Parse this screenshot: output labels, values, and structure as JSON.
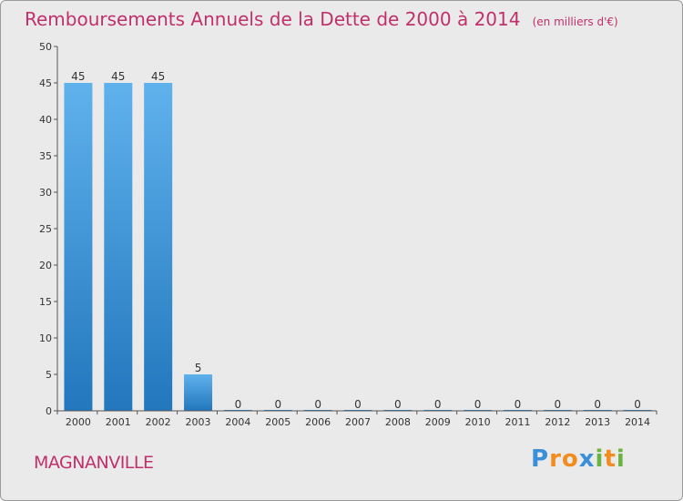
{
  "chart_data": {
    "type": "bar",
    "title": "Remboursements Annuels de la Dette de 2000 à 2014",
    "subtitle": "(en milliers d'€)",
    "categories": [
      "2000",
      "2001",
      "2002",
      "2003",
      "2004",
      "2005",
      "2006",
      "2007",
      "2008",
      "2009",
      "2010",
      "2011",
      "2012",
      "2013",
      "2014"
    ],
    "values": [
      45,
      45,
      45,
      5,
      0,
      0,
      0,
      0,
      0,
      0,
      0,
      0,
      0,
      0,
      0
    ],
    "ylim": [
      0,
      50
    ],
    "yticks": [
      0,
      5,
      10,
      15,
      20,
      25,
      30,
      35,
      40,
      45,
      50
    ],
    "xlabel": "",
    "ylabel": "",
    "grid": false,
    "bar_color": "#2f86cf"
  },
  "commune": "MAGNANVILLE",
  "brand": {
    "letters": [
      "P",
      "r",
      "o",
      "x",
      "i",
      "t",
      "i"
    ],
    "colors": [
      "#3a8fd8",
      "#f28c1e",
      "#f28c1e",
      "#3a8fd8",
      "#6ab33f",
      "#f28c1e",
      "#6ab33f"
    ]
  },
  "colors": {
    "title": "#c0306a",
    "axis": "#555555"
  }
}
